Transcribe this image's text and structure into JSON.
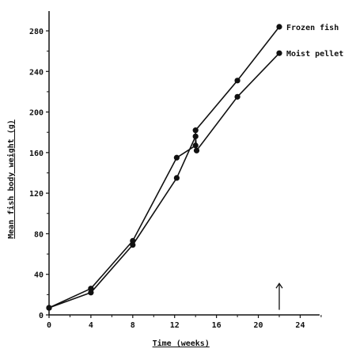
{
  "chart_data": {
    "type": "line",
    "xlabel": "Time (weeks)",
    "ylabel": "Mean fish body weight (g)",
    "xlim": [
      0,
      26
    ],
    "ylim": [
      0,
      295
    ],
    "xticks": [
      0,
      4,
      8,
      12,
      16,
      20,
      24
    ],
    "yticks": [
      0,
      40,
      80,
      120,
      160,
      200,
      240,
      280
    ],
    "grid": false,
    "legend": "inline labels at line ends",
    "series": [
      {
        "name": "Frozen fish",
        "x": [
          0,
          4,
          8,
          12.2,
          14,
          14,
          18,
          22
        ],
        "y": [
          7,
          26,
          73,
          155,
          167,
          182,
          231,
          284
        ]
      },
      {
        "name": "Moist pellet",
        "x": [
          0,
          4,
          8,
          12.2,
          14,
          14.1,
          18,
          22
        ],
        "y": [
          7,
          22,
          69,
          135,
          176,
          162,
          215,
          258
        ]
      }
    ],
    "annotations": [
      {
        "type": "arrow-up",
        "x": 22,
        "y_from": 5,
        "y_to": 31,
        "color": "#111111"
      }
    ]
  }
}
